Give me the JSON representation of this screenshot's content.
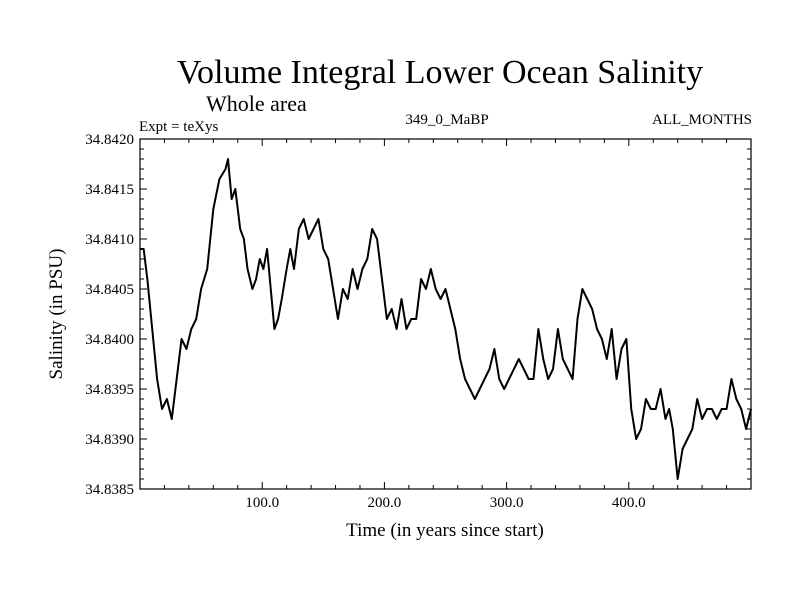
{
  "chart_data": {
    "type": "line",
    "title": "Volume Integral Lower Ocean Salinity",
    "subtitle": "Whole area",
    "annotations": {
      "left": "Expt = teXys",
      "center": "349_0_MaBP",
      "right": "ALL_MONTHS"
    },
    "xlabel": "Time (in years since start)",
    "ylabel": "Salinity (in PSU)",
    "xlim": [
      0,
      500
    ],
    "ylim": [
      34.8385,
      34.842
    ],
    "x_ticks": [
      100,
      200,
      300,
      400
    ],
    "x_tick_labels": [
      "100.0",
      "200.0",
      "300.0",
      "400.0"
    ],
    "y_ticks": [
      34.8385,
      34.839,
      34.8395,
      34.84,
      34.8405,
      34.841,
      34.8415,
      34.842
    ],
    "y_tick_labels": [
      "34.8385",
      "34.8390",
      "34.8395",
      "34.8400",
      "34.8405",
      "34.8410",
      "34.8415",
      "34.8420"
    ],
    "grid": false,
    "series": [
      {
        "color": "#000000",
        "x": [
          0,
          3,
          6,
          10,
          14,
          18,
          22,
          26,
          30,
          34,
          38,
          42,
          46,
          50,
          55,
          60,
          65,
          70,
          72,
          75,
          78,
          82,
          85,
          88,
          92,
          95,
          98,
          101,
          104,
          107,
          110,
          113,
          116,
          120,
          123,
          126,
          130,
          134,
          138,
          142,
          146,
          150,
          154,
          158,
          162,
          166,
          170,
          174,
          178,
          182,
          186,
          190,
          194,
          198,
          202,
          206,
          210,
          214,
          218,
          222,
          226,
          230,
          234,
          238,
          242,
          246,
          250,
          254,
          258,
          262,
          266,
          270,
          274,
          278,
          282,
          286,
          290,
          294,
          298,
          302,
          306,
          310,
          314,
          318,
          322,
          326,
          330,
          334,
          338,
          342,
          346,
          350,
          354,
          358,
          362,
          366,
          370,
          374,
          378,
          382,
          386,
          390,
          394,
          398,
          402,
          406,
          410,
          414,
          418,
          422,
          426,
          430,
          433,
          436,
          440,
          444,
          448,
          452,
          456,
          460,
          464,
          468,
          472,
          476,
          480,
          484,
          488,
          492,
          496,
          500
        ],
        "values": [
          34.8409,
          34.8409,
          34.8406,
          34.8401,
          34.8396,
          34.8393,
          34.8394,
          34.8392,
          34.8396,
          34.84,
          34.8399,
          34.8401,
          34.8402,
          34.8405,
          34.8407,
          34.8413,
          34.8416,
          34.8417,
          34.8418,
          34.8414,
          34.8415,
          34.8411,
          34.841,
          34.8407,
          34.8405,
          34.8406,
          34.8408,
          34.8407,
          34.8409,
          34.8405,
          34.8401,
          34.8402,
          34.8404,
          34.8407,
          34.8409,
          34.8407,
          34.8411,
          34.8412,
          34.841,
          34.8411,
          34.8412,
          34.8409,
          34.8408,
          34.8405,
          34.8402,
          34.8405,
          34.8404,
          34.8407,
          34.8405,
          34.8407,
          34.8408,
          34.8411,
          34.841,
          34.8406,
          34.8402,
          34.8403,
          34.8401,
          34.8404,
          34.8401,
          34.8402,
          34.8402,
          34.8406,
          34.8405,
          34.8407,
          34.8405,
          34.8404,
          34.8405,
          34.8403,
          34.8401,
          34.8398,
          34.8396,
          34.8395,
          34.8394,
          34.8395,
          34.8396,
          34.8397,
          34.8399,
          34.8396,
          34.8395,
          34.8396,
          34.8397,
          34.8398,
          34.8397,
          34.8396,
          34.8396,
          34.8401,
          34.8398,
          34.8396,
          34.8397,
          34.8401,
          34.8398,
          34.8397,
          34.8396,
          34.8402,
          34.8405,
          34.8404,
          34.8403,
          34.8401,
          34.84,
          34.8398,
          34.8401,
          34.8396,
          34.8399,
          34.84,
          34.8393,
          34.839,
          34.8391,
          34.8394,
          34.8393,
          34.8393,
          34.8395,
          34.8392,
          34.8393,
          34.8391,
          34.8386,
          34.8389,
          34.839,
          34.8391,
          34.8394,
          34.8392,
          34.8393,
          34.8393,
          34.8392,
          34.8393,
          34.8393,
          34.8396,
          34.8394,
          34.8393,
          34.8391,
          34.8393
        ]
      }
    ]
  }
}
